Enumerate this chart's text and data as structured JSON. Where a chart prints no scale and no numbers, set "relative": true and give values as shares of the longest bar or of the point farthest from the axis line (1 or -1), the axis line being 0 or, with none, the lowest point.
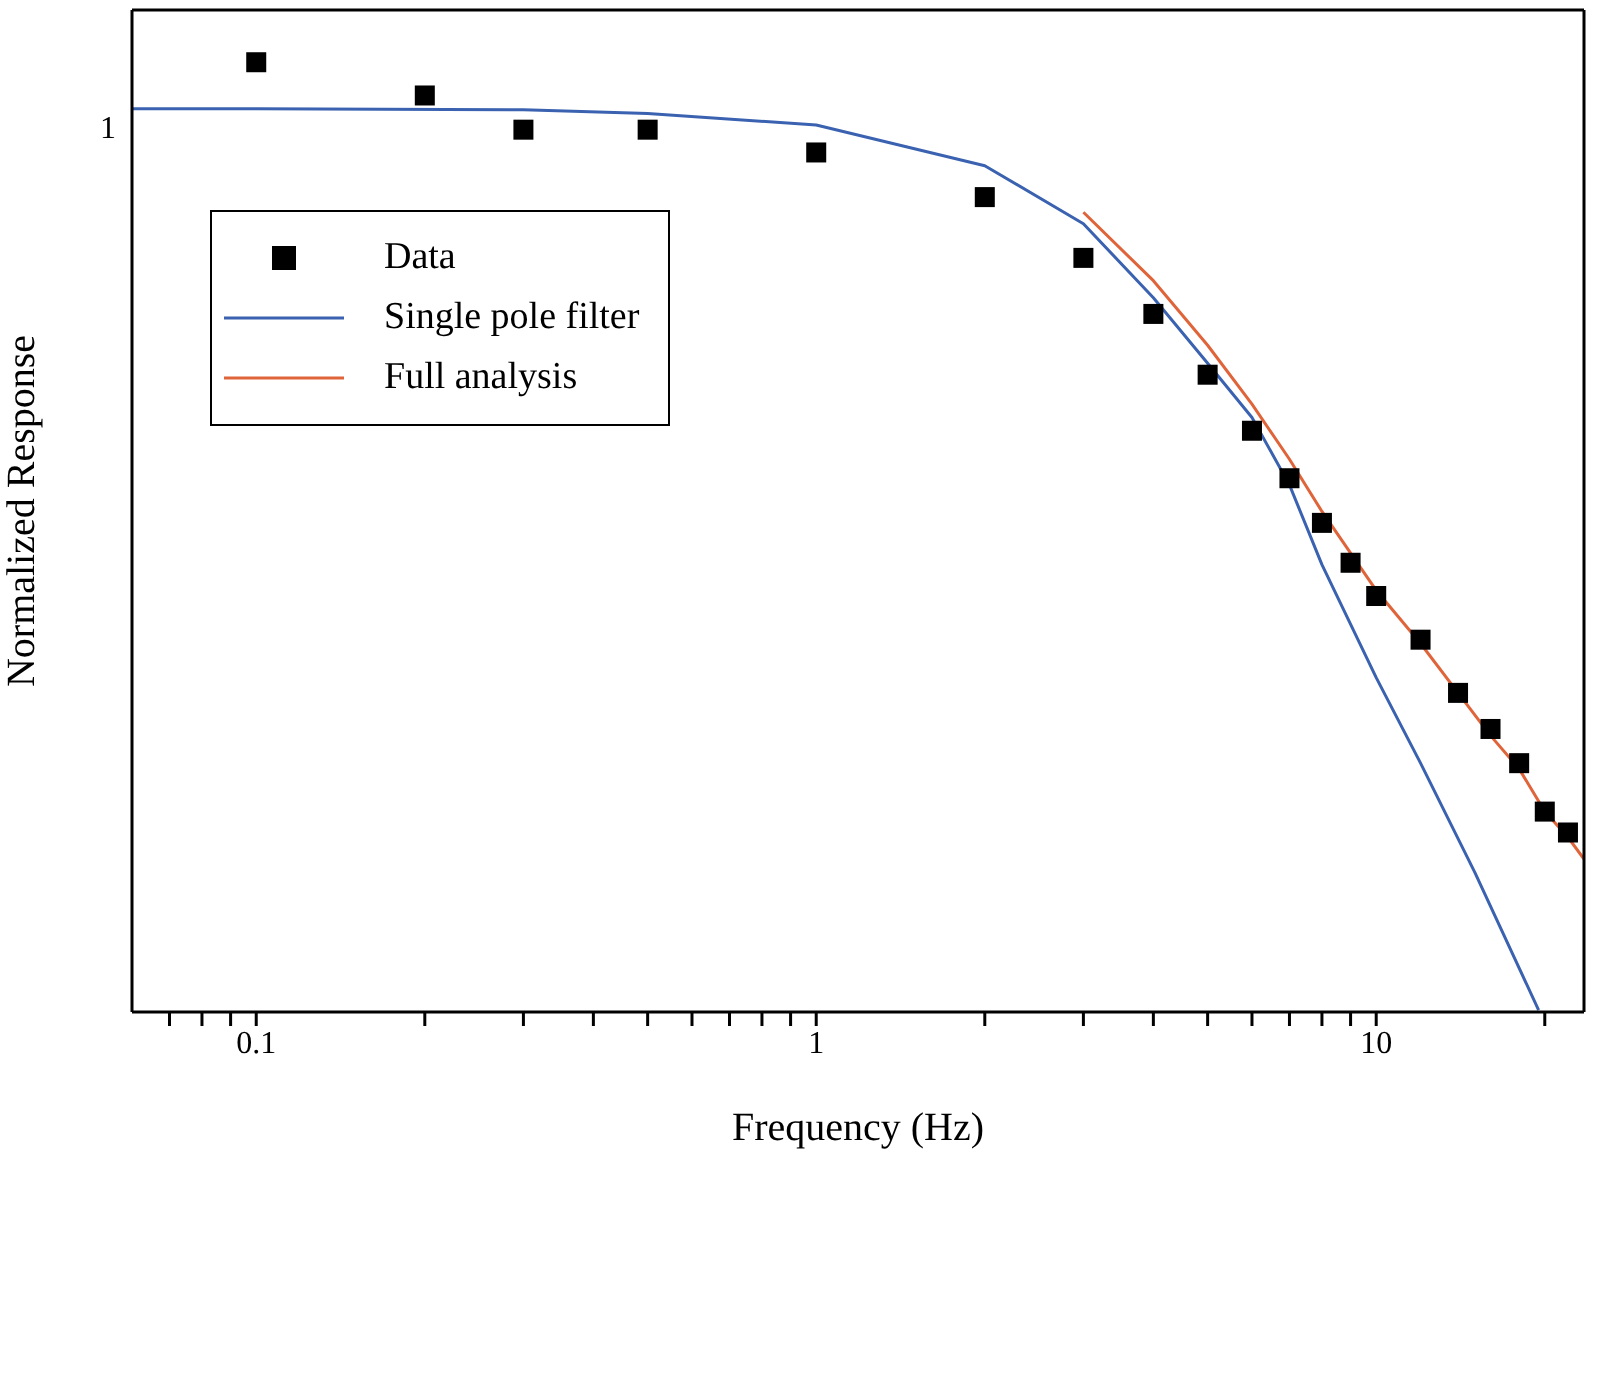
{
  "chart_data": {
    "type": "line",
    "xlabel": "Frequency (Hz)",
    "ylabel": "Normalized Response",
    "log": "x",
    "legend": "top left",
    "relative": true,
    "annotations": [
      "1"
    ],
    "xlim": [
      0.06,
      23.5
    ],
    "xticks": [
      {
        "value": 0.07,
        "label": null
      },
      {
        "value": 0.08,
        "label": null
      },
      {
        "value": 0.09,
        "label": null
      },
      {
        "value": 0.1,
        "label": "0.1"
      },
      {
        "value": 0.2,
        "label": null
      },
      {
        "value": 0.3,
        "label": null
      },
      {
        "value": 0.4,
        "label": null
      },
      {
        "value": 0.5,
        "label": null
      },
      {
        "value": 0.6,
        "label": null
      },
      {
        "value": 0.7,
        "label": null
      },
      {
        "value": 0.8,
        "label": null
      },
      {
        "value": 0.9,
        "label": null
      },
      1,
      {
        "value": 2,
        "label": null
      },
      {
        "value": 3,
        "label": null
      },
      {
        "value": 4,
        "label": null
      },
      {
        "value": 5,
        "label": null
      },
      {
        "value": 6,
        "label": null
      },
      {
        "value": 7,
        "label": null
      },
      {
        "value": 8,
        "label": null
      },
      {
        "value": 9,
        "label": null
      },
      10,
      {
        "value": 20,
        "label": null
      }
    ],
    "series": [
      {
        "name": "Data",
        "type": "scatter",
        "marker": "square",
        "color": "#000000",
        "x": [
          0.1,
          0.2,
          0.3,
          0.5,
          1,
          2,
          3,
          4,
          5,
          6,
          7,
          8,
          9,
          10,
          12,
          14,
          16,
          18,
          20,
          22
        ],
        "values": [
          1.0,
          0.965,
          0.929,
          0.929,
          0.905,
          0.858,
          0.794,
          0.735,
          0.671,
          0.612,
          0.562,
          0.515,
          0.473,
          0.438,
          0.392,
          0.336,
          0.298,
          0.262,
          0.211,
          0.189
        ]
      },
      {
        "name": "Single pole filter",
        "marker": "none",
        "color": "#3a62b0",
        "x": [
          0.06,
          0.1,
          0.3,
          0.5,
          1,
          2,
          3,
          4,
          5,
          6,
          7,
          8,
          10,
          12,
          15,
          19.5
        ],
        "values": [
          0.951,
          0.951,
          0.95,
          0.946,
          0.934,
          0.891,
          0.83,
          0.752,
          0.683,
          0.626,
          0.555,
          0.471,
          0.352,
          0.262,
          0.147,
          0.002
        ]
      },
      {
        "name": "Full analysis",
        "marker": "none",
        "color": "#e0643a",
        "x": [
          3,
          4,
          5,
          6,
          7,
          8,
          10,
          12,
          14,
          16,
          18,
          20,
          22,
          23.5
        ],
        "values": [
          0.842,
          0.77,
          0.702,
          0.64,
          0.582,
          0.527,
          0.444,
          0.388,
          0.336,
          0.291,
          0.256,
          0.211,
          0.184,
          0.161
        ]
      }
    ]
  }
}
